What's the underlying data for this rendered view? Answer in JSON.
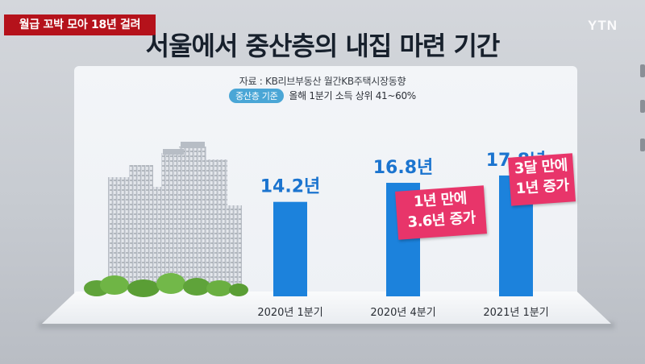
{
  "top_tag": "월급 꼬박 모아 18년 걸려",
  "logo": "YTN",
  "title": "서울에서 중산층의 내집 마련 기간",
  "source": "자료 : KB리브부동산 월간KB주택시장동향",
  "basis": {
    "badge": "중산층 기준",
    "text": "올해 1분기 소득 상위 41~60%"
  },
  "colors": {
    "bar": "#1c82dc",
    "value_label": "#1b74cf",
    "callout": "#e8356a",
    "tag": "#b5121b"
  },
  "callouts": [
    {
      "line1": "1년 만에",
      "line2": "3.6년 증가"
    },
    {
      "line1": "3달 만에",
      "line2": "1년 증가"
    }
  ],
  "chart_data": {
    "type": "bar",
    "title": "서울에서 중산층의 내집 마련 기간",
    "categories": [
      "2020년 1분기",
      "2020년 4분기",
      "2021년 1분기"
    ],
    "values": [
      14.2,
      16.8,
      17.8
    ],
    "value_labels": [
      "14.2년",
      "16.8년",
      "17.8년"
    ],
    "xlabel": "",
    "ylabel": "",
    "grid": false,
    "legend": "none"
  }
}
